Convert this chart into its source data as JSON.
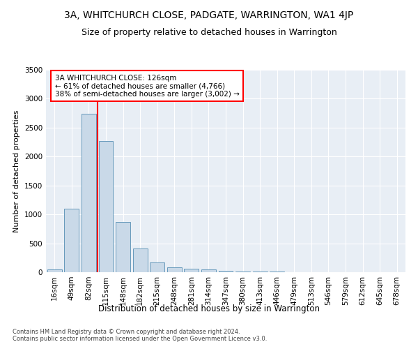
{
  "title": "3A, WHITCHURCH CLOSE, PADGATE, WARRINGTON, WA1 4JP",
  "subtitle": "Size of property relative to detached houses in Warrington",
  "xlabel": "Distribution of detached houses by size in Warrington",
  "ylabel": "Number of detached properties",
  "bar_labels": [
    "16sqm",
    "49sqm",
    "82sqm",
    "115sqm",
    "148sqm",
    "182sqm",
    "215sqm",
    "248sqm",
    "281sqm",
    "314sqm",
    "347sqm",
    "380sqm",
    "413sqm",
    "446sqm",
    "479sqm",
    "513sqm",
    "546sqm",
    "579sqm",
    "612sqm",
    "645sqm",
    "678sqm"
  ],
  "bar_values": [
    50,
    1100,
    2740,
    2270,
    870,
    415,
    170,
    90,
    60,
    45,
    30,
    18,
    10,
    8,
    0,
    0,
    0,
    0,
    0,
    0,
    0
  ],
  "bar_color": "#c9d9e8",
  "bar_edge_color": "#6699bb",
  "annotation_text": "3A WHITCHURCH CLOSE: 126sqm\n← 61% of detached houses are smaller (4,766)\n38% of semi-detached houses are larger (3,002) →",
  "annotation_box_color": "white",
  "annotation_box_edge_color": "red",
  "line_color": "red",
  "line_x_index": 2.5,
  "ylim": [
    0,
    3500
  ],
  "yticks": [
    0,
    500,
    1000,
    1500,
    2000,
    2500,
    3000,
    3500
  ],
  "bg_color": "#e8eef5",
  "grid_color": "#ffffff",
  "footnote": "Contains HM Land Registry data © Crown copyright and database right 2024.\nContains public sector information licensed under the Open Government Licence v3.0.",
  "title_fontsize": 10,
  "subtitle_fontsize": 9,
  "xlabel_fontsize": 8.5,
  "ylabel_fontsize": 8,
  "tick_fontsize": 7.5,
  "annot_fontsize": 7.5,
  "footnote_fontsize": 6
}
